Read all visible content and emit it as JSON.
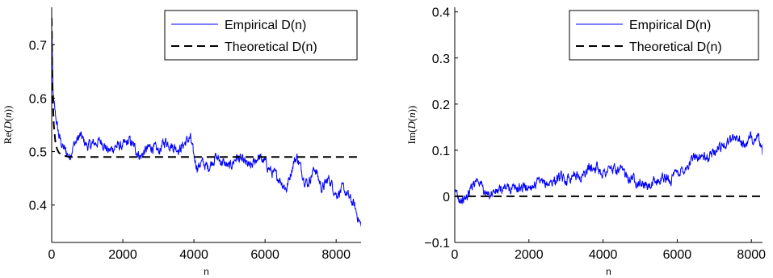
{
  "chart_data": [
    {
      "type": "line",
      "ylabel_parts": [
        "Re(",
        "D",
        "(",
        "n",
        "))"
      ],
      "xlabel": "n",
      "xlim": [
        0,
        8700
      ],
      "ylim": [
        0.33,
        0.77
      ],
      "xticks": [
        0,
        2000,
        4000,
        6000,
        8000
      ],
      "xtick_labels": [
        "0",
        "2000",
        "4000",
        "6000",
        "8000"
      ],
      "yticks": [
        0.4,
        0.5,
        0.6,
        0.7
      ],
      "ytick_labels": [
        "0.4",
        "0.5",
        "0.6",
        "0.7"
      ],
      "grid": false,
      "legend_position": "top-right",
      "series": [
        {
          "name": "Empirical D(n)",
          "style": "solid",
          "color": "#0000ff",
          "x": [
            0,
            10,
            20,
            40,
            60,
            80,
            100,
            150,
            200,
            250,
            300,
            400,
            500,
            600,
            700,
            800,
            900,
            1000,
            1200,
            1400,
            1600,
            1800,
            2000,
            2200,
            2400,
            2500,
            2600,
            2800,
            3000,
            3200,
            3400,
            3600,
            3800,
            3900,
            4000,
            4100,
            4200,
            4400,
            4600,
            4800,
            5000,
            5200,
            5400,
            5600,
            5800,
            6000,
            6100,
            6200,
            6400,
            6600,
            6800,
            6900,
            7000,
            7100,
            7200,
            7400,
            7600,
            7800,
            8000,
            8200,
            8400,
            8500,
            8600,
            8700
          ],
          "y": [
            0.65,
            0.72,
            0.66,
            0.61,
            0.59,
            0.58,
            0.57,
            0.55,
            0.53,
            0.52,
            0.51,
            0.5,
            0.49,
            0.51,
            0.52,
            0.53,
            0.52,
            0.51,
            0.515,
            0.52,
            0.5,
            0.51,
            0.51,
            0.52,
            0.5,
            0.49,
            0.5,
            0.51,
            0.5,
            0.52,
            0.51,
            0.505,
            0.52,
            0.525,
            0.49,
            0.47,
            0.48,
            0.47,
            0.49,
            0.48,
            0.47,
            0.49,
            0.48,
            0.47,
            0.49,
            0.48,
            0.47,
            0.46,
            0.45,
            0.43,
            0.48,
            0.49,
            0.47,
            0.45,
            0.44,
            0.47,
            0.43,
            0.45,
            0.42,
            0.43,
            0.41,
            0.4,
            0.38,
            0.36
          ]
        },
        {
          "name": "Theoretical D(n)",
          "style": "dashed",
          "color": "#000000",
          "x": [
            0,
            20,
            40,
            60,
            100,
            150,
            200,
            300,
            500,
            1000,
            8700
          ],
          "y": [
            0.75,
            0.62,
            0.58,
            0.55,
            0.52,
            0.505,
            0.498,
            0.493,
            0.49,
            0.49,
            0.49
          ]
        }
      ]
    },
    {
      "type": "line",
      "ylabel_parts": [
        "Im(",
        "D",
        "(",
        "n",
        "))"
      ],
      "xlabel": "n",
      "xlim": [
        0,
        8300
      ],
      "ylim": [
        -0.1,
        0.41
      ],
      "xticks": [
        0,
        2000,
        4000,
        6000,
        8000
      ],
      "xtick_labels": [
        "0",
        "2000",
        "4000",
        "6000",
        "8000"
      ],
      "yticks": [
        -0.1,
        0,
        0.1,
        0.2,
        0.3,
        0.4
      ],
      "ytick_labels": [
        "−0.1",
        "0",
        "0.1",
        "0.2",
        "0.3",
        "0.4"
      ],
      "grid": false,
      "legend_position": "top-right",
      "series": [
        {
          "name": "Empirical D(n)",
          "style": "solid",
          "color": "#0000ff",
          "x": [
            0,
            50,
            100,
            200,
            300,
            400,
            500,
            600,
            700,
            800,
            900,
            1000,
            1200,
            1400,
            1600,
            1800,
            2000,
            2200,
            2400,
            2600,
            2800,
            3000,
            3200,
            3400,
            3600,
            3800,
            4000,
            4200,
            4400,
            4600,
            4800,
            5000,
            5200,
            5400,
            5600,
            5800,
            6000,
            6200,
            6400,
            6600,
            6800,
            7000,
            7200,
            7400,
            7600,
            7800,
            8000,
            8100,
            8200,
            8300
          ],
          "y": [
            0.0,
            0.01,
            0.0,
            -0.01,
            -0.005,
            0.01,
            0.03,
            0.04,
            0.03,
            0.01,
            0.0,
            0.01,
            0.01,
            0.02,
            0.015,
            0.02,
            0.02,
            0.03,
            0.025,
            0.03,
            0.04,
            0.035,
            0.05,
            0.04,
            0.06,
            0.065,
            0.05,
            0.06,
            0.055,
            0.05,
            0.04,
            0.03,
            0.02,
            0.03,
            0.04,
            0.035,
            0.05,
            0.06,
            0.08,
            0.09,
            0.08,
            0.1,
            0.11,
            0.12,
            0.13,
            0.11,
            0.125,
            0.13,
            0.12,
            0.09
          ]
        },
        {
          "name": "Theoretical D(n)",
          "style": "dashed",
          "color": "#000000",
          "x": [
            0,
            8300
          ],
          "y": [
            0.0,
            0.0
          ]
        }
      ]
    }
  ]
}
